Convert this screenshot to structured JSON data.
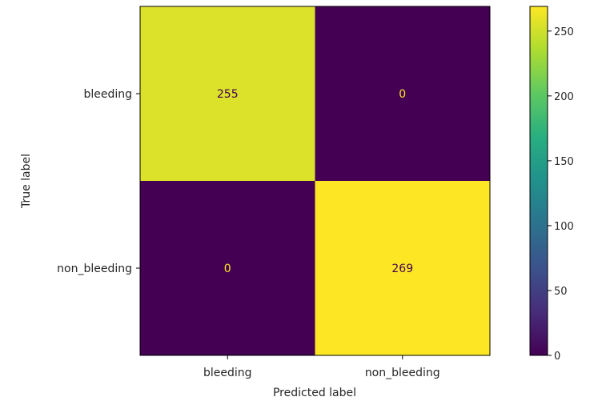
{
  "chart_data": {
    "type": "heatmap",
    "x_categories": [
      "bleeding",
      "non_bleeding"
    ],
    "y_categories": [
      "bleeding",
      "non_bleeding"
    ],
    "values": [
      [
        255,
        0
      ],
      [
        0,
        269
      ]
    ],
    "value_labels": [
      [
        "255",
        "0"
      ],
      [
        "0",
        "269"
      ]
    ],
    "xlabel": "Predicted label",
    "ylabel": "True label",
    "colormap": "viridis",
    "colorbar": {
      "min": 0,
      "max": 269,
      "ticks": [
        0,
        50,
        100,
        150,
        200,
        250
      ],
      "tick_labels": [
        "0",
        "50",
        "100",
        "150",
        "200",
        "250"
      ]
    },
    "colors": {
      "low": "#440154",
      "high": "#fde725",
      "low_text": "#fde725",
      "high_text": "#440154"
    }
  }
}
